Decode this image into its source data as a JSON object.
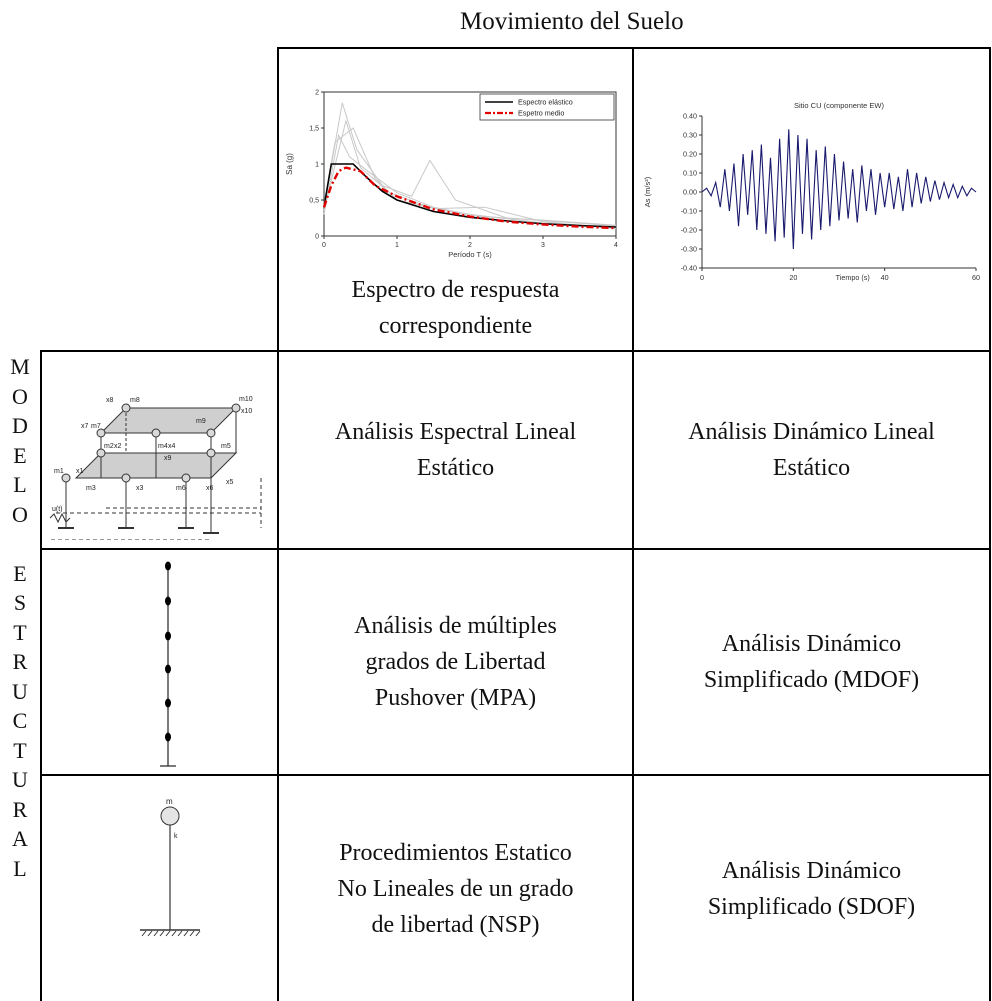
{
  "header": {
    "title": "Movimiento del Suelo"
  },
  "side_label": {
    "letters": [
      "M",
      "O",
      "D",
      "E",
      "L",
      "O",
      "",
      "E",
      "S",
      "T",
      "R",
      "U",
      "C",
      "T",
      "U",
      "R",
      "A",
      "L"
    ]
  },
  "columns": {
    "spectrum": {
      "caption_line1": "Espectro de respuesta",
      "caption_line2": "correspondiente"
    }
  },
  "rows": [
    {
      "static_line1": "Análisis Espectral Lineal",
      "static_line2": "Estático",
      "dynamic_line1": "Análisis Dinámico Lineal",
      "dynamic_line2": "Estático"
    },
    {
      "static_line1": "Análisis de múltiples",
      "static_line2": "grados de Libertad",
      "static_line3": "Pushover (MPA)",
      "dynamic_line1": "Análisis Dinámico",
      "dynamic_line2": "Simplificado (MDOF)"
    },
    {
      "static_line1": "Procedimientos Estatico",
      "static_line2": "No Lineales de un grado",
      "static_line3": "de libertad (NSP)",
      "dynamic_line1": "Análisis Dinámico",
      "dynamic_line2": "Simplificado (SDOF)"
    }
  ],
  "diagram_labels": {
    "m": [
      "m1",
      "m2",
      "m3",
      "m4",
      "m5",
      "m6",
      "m7",
      "m8",
      "m9",
      "m10"
    ],
    "x": [
      "x1",
      "x2",
      "x3",
      "x4",
      "x5",
      "x6",
      "x7",
      "x8",
      "x9",
      "x10"
    ],
    "ground": "u(t)",
    "sdof_mass": "m",
    "sdof_spring": "k"
  },
  "chart_data": [
    {
      "type": "line",
      "xlabel": "Período T (s)",
      "ylabel": "Sa (g)",
      "xticks": [
        "0",
        "1",
        "2",
        "3",
        "4"
      ],
      "yticks": [
        "0",
        "0,5",
        "1",
        "1,5",
        "2"
      ],
      "xlim": [
        0,
        4
      ],
      "ylim": [
        0,
        2
      ],
      "legend_position": "top-right",
      "series": [
        {
          "name": "Espectro elástico",
          "color": "#000000",
          "x": [
            0,
            0.1,
            0.4,
            0.6,
            0.8,
            1.0,
            1.5,
            2.0,
            2.5,
            3.0,
            3.5,
            4.0
          ],
          "values": [
            0.4,
            1.0,
            1.0,
            0.8,
            0.62,
            0.5,
            0.34,
            0.26,
            0.21,
            0.17,
            0.145,
            0.125
          ]
        },
        {
          "name": "Espetro medio",
          "color": "#e00000",
          "x": [
            0,
            0.1,
            0.2,
            0.3,
            0.5,
            0.7,
            1.0,
            1.5,
            2.0,
            2.5,
            3.0,
            3.5,
            4.0
          ],
          "values": [
            0.4,
            0.7,
            0.9,
            0.95,
            0.9,
            0.7,
            0.55,
            0.37,
            0.27,
            0.2,
            0.16,
            0.13,
            0.11
          ]
        }
      ]
    },
    {
      "type": "line",
      "title": "Sitio CU (componente EW)",
      "xlabel": "Tiempo (s)",
      "ylabel": "As (m/s²)",
      "xticks": [
        "0",
        "20",
        "40",
        "60"
      ],
      "yticks": [
        "0.40",
        "0.30",
        "0.20",
        "0.10",
        "0.00",
        "-0.10",
        "-0.20",
        "-0.30",
        "-0.40"
      ],
      "xlim": [
        0,
        60
      ],
      "ylim": [
        -0.4,
        0.4
      ],
      "series": [
        {
          "color": "#1a1a6e",
          "x": [
            0,
            1,
            2,
            3,
            4,
            5,
            6,
            7,
            8,
            9,
            10,
            11,
            12,
            13,
            14,
            15,
            16,
            17,
            18,
            19,
            20,
            21,
            22,
            23,
            24,
            25,
            26,
            27,
            28,
            29,
            30,
            31,
            32,
            33,
            34,
            35,
            36,
            37,
            38,
            39,
            40,
            41,
            42,
            43,
            44,
            45,
            46,
            47,
            48,
            49,
            50,
            51,
            52,
            53,
            54,
            55,
            56,
            57,
            58,
            59,
            60
          ],
          "values": [
            0.0,
            0.02,
            -0.02,
            0.05,
            -0.08,
            0.12,
            -0.1,
            0.15,
            -0.18,
            0.2,
            -0.12,
            0.22,
            -0.2,
            0.25,
            -0.22,
            0.18,
            -0.26,
            0.28,
            -0.24,
            0.33,
            -0.3,
            0.3,
            -0.22,
            0.28,
            -0.25,
            0.22,
            -0.2,
            0.24,
            -0.18,
            0.2,
            -0.15,
            0.16,
            -0.14,
            0.12,
            -0.16,
            0.14,
            -0.1,
            0.12,
            -0.12,
            0.1,
            -0.08,
            0.1,
            -0.09,
            0.08,
            -0.1,
            0.12,
            -0.08,
            0.1,
            -0.06,
            0.08,
            -0.05,
            0.06,
            -0.04,
            0.05,
            -0.03,
            0.04,
            -0.03,
            0.03,
            -0.02,
            0.02,
            0.0
          ]
        }
      ]
    }
  ]
}
